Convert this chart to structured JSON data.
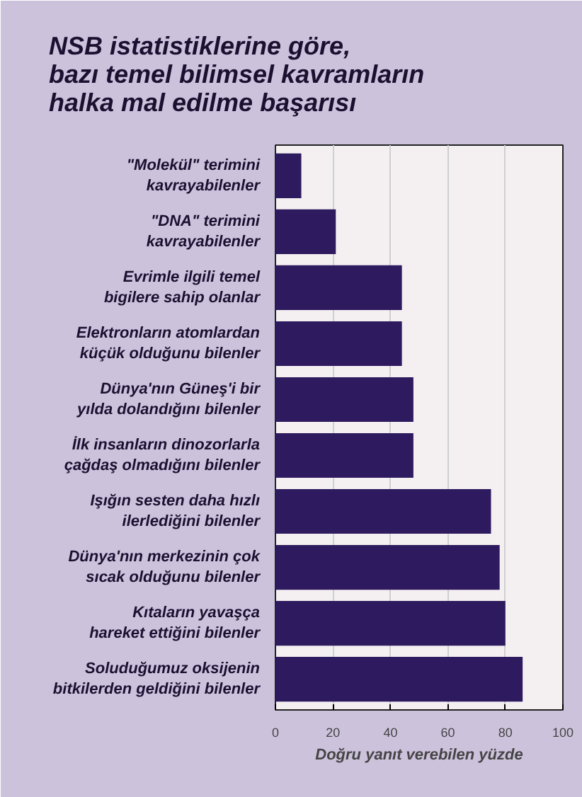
{
  "chart_data": {
    "type": "bar",
    "orientation": "horizontal",
    "title": "NSB istatistiklerine göre,\nbazı temel bilimsel kavramların\nhalka mal edilme başarısı",
    "categories": [
      "\"Molekül\" terimini kavrayabilenler",
      "\"DNA\" terimini kavrayabilenler",
      "Evrimle ilgili temel bigilere sahip olanlar",
      "Elektronların atomlardan küçük olduğunu bilenler",
      "Dünya'nın Güneş'i bir yılda dolandığını bilenler",
      "İlk insanların dinozorlarla çağdaş olmadığını bilenler",
      "Işığın sesten daha hızlı ilerlediğini bilenler",
      "Dünya'nın merkezinin çok sıcak olduğunu bilenler",
      "Kıtaların yavaşça hareket ettiğini bilenler",
      "Soluduğumuz oksijenin bitkilerden geldiğini bilenler"
    ],
    "values": [
      9,
      21,
      44,
      44,
      48,
      48,
      75,
      78,
      80,
      86
    ],
    "color": "#2e1a5e",
    "xlim": [
      0,
      100
    ],
    "xticks": [
      0,
      20,
      40,
      60,
      80,
      100
    ],
    "xlabel": "Doğru yanıt verebilen yüzde",
    "grid": "x"
  }
}
